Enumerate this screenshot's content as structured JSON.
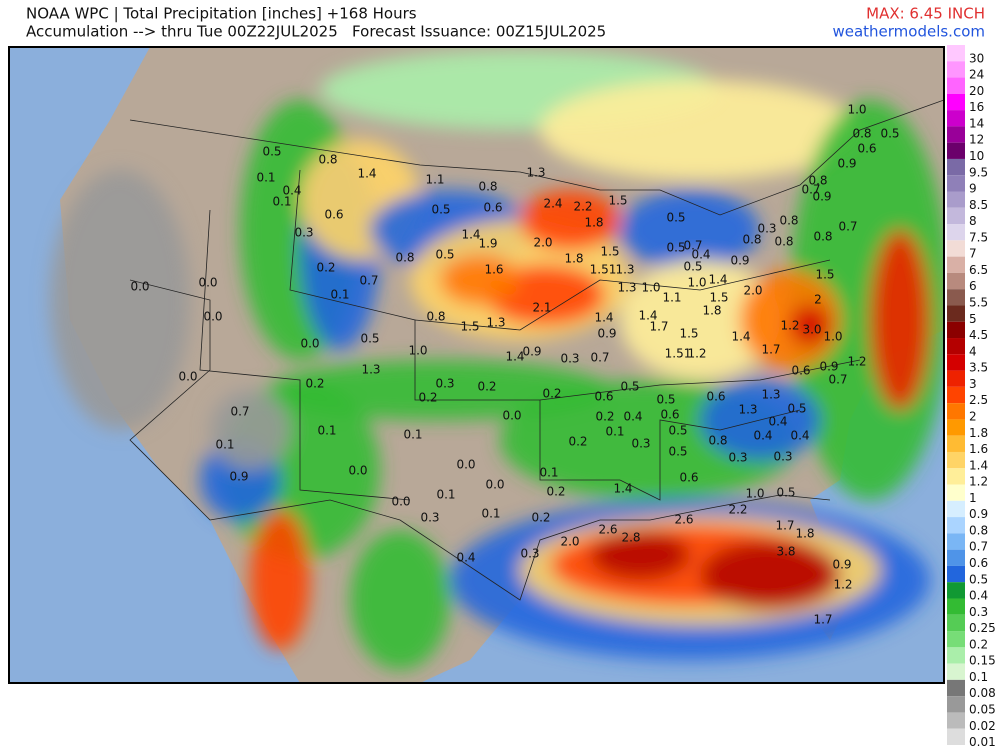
{
  "header": {
    "title": "NOAA WPC | Total Precipitation [inches] +168 Hours",
    "subtitle": "Accumulation --> thru Tue 00Z22JUL2025   Forecast Issuance: 00Z15JUL2025",
    "max": "MAX: 6.45 INCH",
    "source": "weathermodels.com"
  },
  "legend": {
    "items": [
      {
        "label": "30",
        "color": "#ffc8ff"
      },
      {
        "label": "24",
        "color": "#ff96ff"
      },
      {
        "label": "20",
        "color": "#ff64ff"
      },
      {
        "label": "16",
        "color": "#ff00ff"
      },
      {
        "label": "14",
        "color": "#cc00cc"
      },
      {
        "label": "12",
        "color": "#990099"
      },
      {
        "label": "10",
        "color": "#6b006b"
      },
      {
        "label": "9.5",
        "color": "#7a6aa6"
      },
      {
        "label": "9",
        "color": "#8f80b8"
      },
      {
        "label": "8.5",
        "color": "#a99ccb"
      },
      {
        "label": "8",
        "color": "#c3b8dc"
      },
      {
        "label": "7.5",
        "color": "#ddd5ec"
      },
      {
        "label": "7",
        "color": "#f2dcd6"
      },
      {
        "label": "6.5",
        "color": "#d9b0a6"
      },
      {
        "label": "6",
        "color": "#b88a7e"
      },
      {
        "label": "5.5",
        "color": "#8a5a4e"
      },
      {
        "label": "5",
        "color": "#6b2a1e"
      },
      {
        "label": "4.5",
        "color": "#8b0000"
      },
      {
        "label": "4",
        "color": "#b40000"
      },
      {
        "label": "3.5",
        "color": "#d40000"
      },
      {
        "label": "3",
        "color": "#ee2200"
      },
      {
        "label": "2.5",
        "color": "#ff4400"
      },
      {
        "label": "2",
        "color": "#ff7700"
      },
      {
        "label": "1.8",
        "color": "#ff9900"
      },
      {
        "label": "1.6",
        "color": "#ffbb33"
      },
      {
        "label": "1.4",
        "color": "#ffd466"
      },
      {
        "label": "1.2",
        "color": "#ffee99"
      },
      {
        "label": "1",
        "color": "#ffffcc"
      },
      {
        "label": "0.9",
        "color": "#d6eeff"
      },
      {
        "label": "0.8",
        "color": "#aad4ff"
      },
      {
        "label": "0.7",
        "color": "#7ab6f5"
      },
      {
        "label": "0.6",
        "color": "#4f94e8"
      },
      {
        "label": "0.5",
        "color": "#2266dd"
      },
      {
        "label": "0.4",
        "color": "#119933"
      },
      {
        "label": "0.3",
        "color": "#33bb33"
      },
      {
        "label": "0.25",
        "color": "#55cc55"
      },
      {
        "label": "0.2",
        "color": "#77dd77"
      },
      {
        "label": "0.15",
        "color": "#aaeeaa"
      },
      {
        "label": "0.1",
        "color": "#d8f5d0"
      },
      {
        "label": "0.08",
        "color": "#777777"
      },
      {
        "label": "0.05",
        "color": "#999999"
      },
      {
        "label": "0.02",
        "color": "#bbbbbb"
      },
      {
        "label": "0.01",
        "color": "#dddddd"
      }
    ]
  },
  "map": {
    "labels": [
      "0.5",
      "0.8",
      "1.4",
      "1.1",
      "0.1",
      "0.4",
      "0.1",
      "0.6",
      "0.3",
      "0.5",
      "0.6",
      "0.8",
      "1.3",
      "1.5",
      "2.4",
      "2.2",
      "1.8",
      "1.4",
      "1.9",
      "2.0",
      "0.8",
      "0.5",
      "0.2",
      "0.7",
      "0.1",
      "1.6",
      "1.8",
      "1.5",
      "1.51",
      "1.3",
      "1.3",
      "0.0",
      "0.0",
      "0.0",
      "0.8",
      "2.1",
      "1.5",
      "1.3",
      "1.4",
      "0.9",
      "0.0",
      "0.5",
      "1.0",
      "1.3",
      "1.4",
      "0.9",
      "0.3",
      "0.7",
      "0.0",
      "0.2",
      "0.3",
      "0.2",
      "0.2",
      "0.6",
      "0.5",
      "0.4",
      "0.7",
      "0.1",
      "0.1",
      "0.0",
      "0.2",
      "0.2",
      "0.1",
      "0.1",
      "0.9",
      "0.0",
      "0.0",
      "0.1",
      "0.2",
      "0.3",
      "0.5",
      "0.5",
      "0.6",
      "0.6",
      "1.3",
      "1.3",
      "0.5",
      "0.8",
      "0.4",
      "0.4",
      "0.4",
      "0.3",
      "0.5",
      "0.3",
      "0.6",
      "0.0",
      "0.1",
      "0.0",
      "0.1",
      "0.3",
      "0.2",
      "0.2",
      "1.4",
      "1.0",
      "0.5",
      "2.2",
      "0.4",
      "0.3",
      "2.0",
      "2.6",
      "2.8",
      "2.6",
      "1.7",
      "1.8",
      "3.8",
      "0.9",
      "1.2",
      "1.7",
      "1.0",
      "1.1",
      "1.0",
      "1.4",
      "1.5",
      "1.8",
      "1.4",
      "1.7",
      "1.5",
      "1.2",
      "1.51",
      "1.4",
      "1.7",
      "2.0",
      "1.2",
      "3.0",
      "1.0",
      "2",
      "1.5",
      "0.6",
      "0.9",
      "0.7",
      "1.2",
      "0.7",
      "0.5",
      "0.4",
      "0.5",
      "0.5",
      "0.9",
      "0.8",
      "0.8",
      "0.3",
      "0.8",
      "0.7",
      "0.9",
      "0.8",
      "0.8",
      "0.6",
      "1.0",
      "0.5",
      "0.8",
      "0.7",
      "0.9"
    ]
  }
}
